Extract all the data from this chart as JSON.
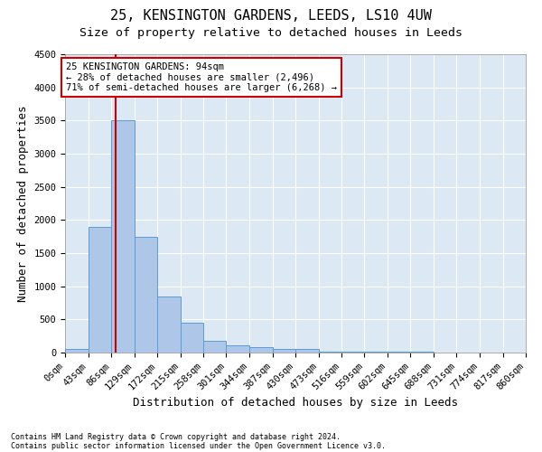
{
  "title_line1": "25, KENSINGTON GARDENS, LEEDS, LS10 4UW",
  "title_line2": "Size of property relative to detached houses in Leeds",
  "xlabel": "Distribution of detached houses by size in Leeds",
  "ylabel": "Number of detached properties",
  "bin_edges": [
    0,
    43,
    86,
    129,
    172,
    215,
    258,
    301,
    344,
    387,
    430,
    473,
    516,
    559,
    602,
    645,
    688,
    731,
    774,
    817,
    860
  ],
  "bar_heights": [
    50,
    1900,
    3500,
    1750,
    850,
    450,
    175,
    110,
    80,
    55,
    50,
    20,
    15,
    10,
    10,
    8,
    5,
    5,
    3,
    2
  ],
  "bar_color": "#aec6e8",
  "bar_edge_color": "#5b9bd5",
  "property_size": 94,
  "vline_color": "#cc0000",
  "annotation_text": "25 KENSINGTON GARDENS: 94sqm\n← 28% of detached houses are smaller (2,496)\n71% of semi-detached houses are larger (6,268) →",
  "annotation_box_color": "#ffffff",
  "annotation_box_edge_color": "#cc0000",
  "ylim": [
    0,
    4500
  ],
  "yticks": [
    0,
    500,
    1000,
    1500,
    2000,
    2500,
    3000,
    3500,
    4000,
    4500
  ],
  "footer_line1": "Contains HM Land Registry data © Crown copyright and database right 2024.",
  "footer_line2": "Contains public sector information licensed under the Open Government Licence v3.0.",
  "fig_bg_color": "#ffffff",
  "plot_bg_color": "#dce9f5",
  "grid_color": "#ffffff",
  "title1_fontsize": 11,
  "title2_fontsize": 9.5,
  "label_fontsize": 9,
  "tick_fontsize": 7.5,
  "annotation_fontsize": 7.5,
  "footer_fontsize": 6
}
